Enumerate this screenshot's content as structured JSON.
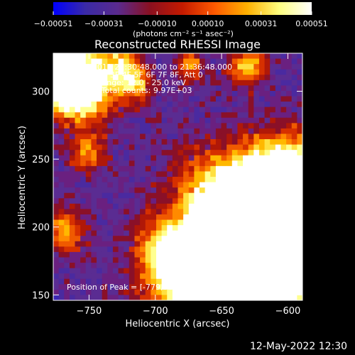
{
  "chart_data": {
    "type": "heatmap",
    "title": "Reconstructed RHESSI Image",
    "xlabel": "Heliocentric X (arcsec)",
    "ylabel": "Heliocentric Y (arcsec)",
    "xlim": [
      -777,
      -589
    ],
    "ylim": [
      146,
      328
    ],
    "x_ticks": [
      -750,
      -700,
      -650,
      -600
    ],
    "x_tick_labels": [
      "−750",
      "−700",
      "−650",
      "−600"
    ],
    "y_ticks": [
      150,
      200,
      250,
      300
    ],
    "y_tick_labels": [
      "150",
      "200",
      "250",
      "300"
    ],
    "colorbar": {
      "min": -0.00051,
      "max": 0.00051,
      "ticks": [
        -0.00051,
        -0.00031,
        -0.0001,
        0.0001,
        0.00031,
        0.00051
      ],
      "tick_labels": [
        "−0.00051",
        "−0.00031",
        "−0.00010",
        "0.00010",
        "0.00031",
        "0.00051"
      ],
      "unit_label": "(photons cm⁻² s⁻¹ asec⁻²)",
      "colors": [
        "#0000ff",
        "#3a2aa6",
        "#5a2a8e",
        "#8a1020",
        "#c41a00",
        "#ff5a00",
        "#ffb000",
        "#ffff80",
        "#ffffff"
      ]
    },
    "annotations": [
      "26-Jul-2011 21:30:48.000 to 21:36:48.000",
      "Detectors: 3F 4F 5F 6F 7F 8F, Att 0",
      "Energy Range: 12.0 - 25.0 keV",
      "Clean     Total counts: 9.97E+03"
    ],
    "peak_label": "Position of Peak = [-779,313]",
    "peak_position": [
      -779,
      313
    ],
    "grid": false
  },
  "footer": {
    "timestamp": "12-May-2022 12:30"
  }
}
